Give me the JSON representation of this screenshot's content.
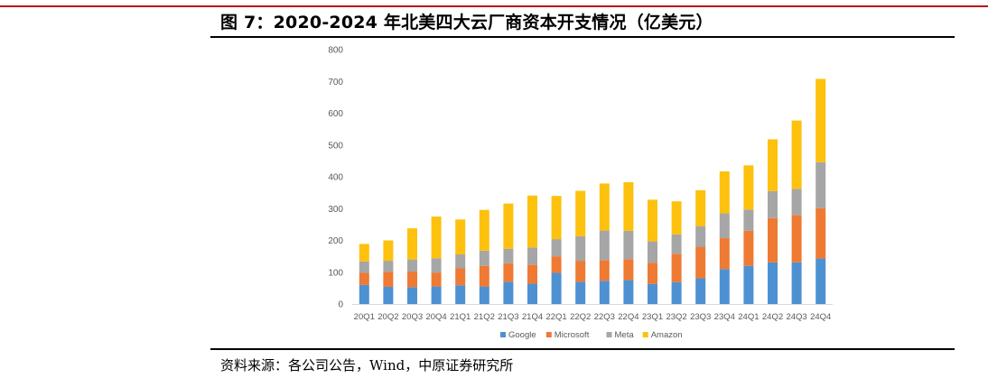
{
  "header": {
    "title": "图 7：2020-2024 年北美四大云厂商资本开支情况（亿美元）",
    "accent_color": "#b8131a"
  },
  "footer": {
    "source": "资料来源：各公司公告，Wind，中原证券研究所"
  },
  "chart_data": {
    "type": "bar",
    "stacked": true,
    "title": "",
    "xlabel": "",
    "ylabel": "",
    "ylim": [
      0,
      800
    ],
    "yticks": [
      0,
      100,
      200,
      300,
      400,
      500,
      600,
      700,
      800
    ],
    "grid": false,
    "legend_position": "bottom",
    "categories": [
      "20Q1",
      "20Q2",
      "20Q3",
      "20Q4",
      "21Q1",
      "21Q2",
      "21Q3",
      "21Q4",
      "22Q1",
      "22Q2",
      "22Q3",
      "22Q4",
      "23Q1",
      "23Q2",
      "23Q3",
      "23Q4",
      "24Q1",
      "24Q2",
      "24Q3",
      "24Q4"
    ],
    "series": [
      {
        "name": "Google",
        "color": "#4e91d2",
        "values": [
          60,
          54,
          53,
          55,
          59,
          55,
          70,
          64,
          98,
          70,
          73,
          75,
          63,
          69,
          81,
          110,
          120,
          131,
          131,
          143
        ]
      },
      {
        "name": "Microsoft",
        "color": "#ee7a34",
        "values": [
          38,
          47,
          49,
          44,
          53,
          65,
          58,
          59,
          52,
          66,
          65,
          66,
          67,
          89,
          99,
          97,
          110,
          139,
          149,
          158
        ]
      },
      {
        "name": "Meta",
        "color": "#a6a6a6",
        "values": [
          36,
          35,
          38,
          45,
          44,
          48,
          46,
          55,
          54,
          77,
          93,
          89,
          67,
          61,
          65,
          78,
          67,
          85,
          82,
          145
        ]
      },
      {
        "name": "Amazon",
        "color": "#fdc10e",
        "values": [
          55,
          64,
          98,
          131,
          110,
          128,
          142,
          163,
          136,
          143,
          148,
          153,
          131,
          104,
          113,
          132,
          139,
          163,
          215,
          262
        ]
      }
    ]
  }
}
